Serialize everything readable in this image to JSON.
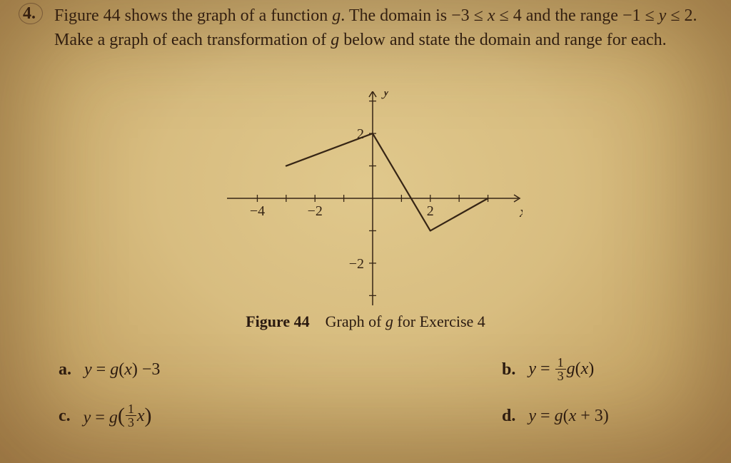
{
  "problem": {
    "number": "4.",
    "text_html": "Figure 44 shows the graph of a function <i>g</i>. The domain is −3 ≤ <i>x</i> ≤ 4 and the range −1 ≤ <i>y</i> ≤ 2. Make a graph of each transformation of <i>g</i> below and state the domain and range for each."
  },
  "graph": {
    "xlim": [
      -5.2,
      5.2
    ],
    "ylim": [
      -3.3,
      3.3
    ],
    "xticks": [
      -4,
      -2,
      2,
      4
    ],
    "yticks": [
      -2,
      2
    ],
    "xtick_show_label": {
      "-4": true,
      "-2": true,
      "2": true,
      "4": false
    },
    "xlabel": "x",
    "ylabel": "y",
    "axis_color": "#362515",
    "tick_len": 5,
    "curve": {
      "points": [
        [
          -3,
          1
        ],
        [
          0,
          2
        ],
        [
          2,
          -1
        ],
        [
          4,
          0
        ]
      ],
      "stroke": "#362515",
      "stroke_width": 2.2
    },
    "tick_font_size": 20,
    "label_font_size": 22
  },
  "caption": {
    "strong": "Figure 44",
    "rest_html": " Graph of <i>g</i> for Exercise 4"
  },
  "parts": {
    "a": {
      "label": "a.",
      "eq_html": "<i>y</i> = <i>g</i>(<i>x</i>) −3"
    },
    "b": {
      "label": "b.",
      "eq_html": "<i>y</i> = <span class=\"frac\"><span class=\"num\">1</span><span class=\"den\">3</span></span><i>g</i>(<i>x</i>)"
    },
    "c": {
      "label": "c.",
      "eq_html": "<i>y</i> = <i>g</i><span class=\"paren-frac\"><span class=\"big-paren\">(</span><span class=\"frac\"><span class=\"num\">1</span><span class=\"den\">3</span></span><i>x</i><span class=\"big-paren\">)</span></span>"
    },
    "d": {
      "label": "d.",
      "eq_html": "<i>y</i> = <i>g</i>(<i>x</i> + 3)"
    }
  }
}
